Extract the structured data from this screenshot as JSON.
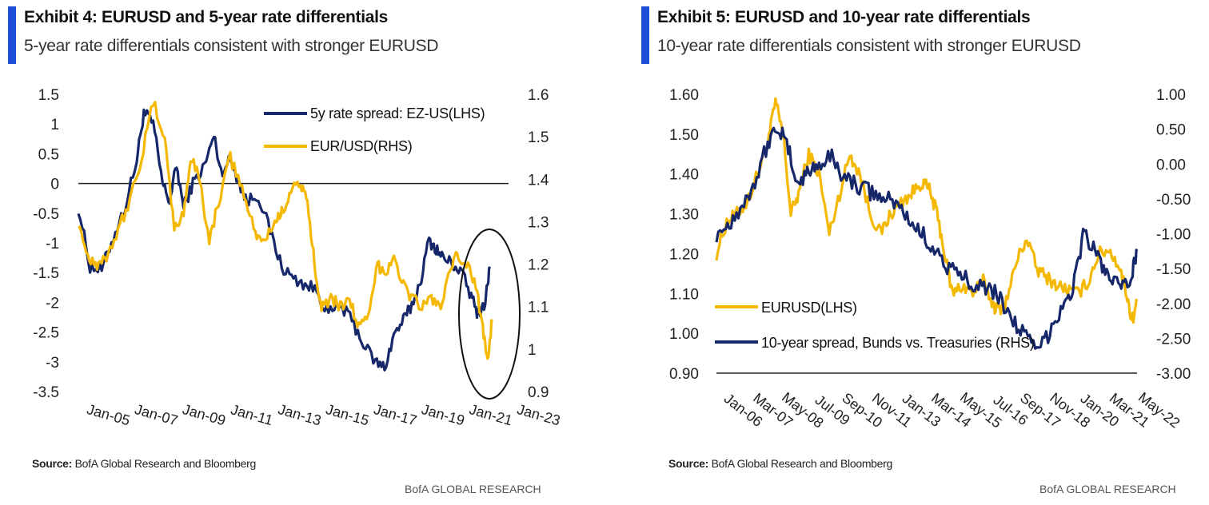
{
  "exhibit4": {
    "title": "Exhibit 4: EURUSD and 5-year rate differentials",
    "subtitle": "5-year rate differentials consistent with stronger EURUSD",
    "source_label": "Source:",
    "source_text": " BofA Global Research and Bloomberg",
    "brand": "BofA GLOBAL RESEARCH"
  },
  "exhibit5": {
    "title": "Exhibit 5: EURUSD and 10-year rate differentials",
    "subtitle": "10-year rate differentials consistent with stronger EURUSD",
    "source_label": "Source:",
    "source_text": " BofA Global Research and Bloomberg",
    "brand": "BofA GLOBAL RESEARCH"
  },
  "colors": {
    "navy": "#16286a",
    "gold": "#f5b800",
    "accent": "#1f4fd6"
  },
  "chart_data": [
    {
      "type": "line",
      "title": "Exhibit 4: EURUSD and 5-year rate differentials",
      "x_tick_labels": [
        "Jan-05",
        "Jan-07",
        "Jan-09",
        "Jan-11",
        "Jan-13",
        "Jan-15",
        "Jan-17",
        "Jan-19",
        "Jan-21",
        "Jan-23"
      ],
      "xlim": [
        2004.8,
        2023.2
      ],
      "y_left": {
        "ticks": [
          "1.5",
          "1",
          "0.5",
          "0",
          "-0.5",
          "-1",
          "-1.5",
          "-2",
          "-2.5",
          "-3",
          "-3.5"
        ],
        "lim": [
          -3.5,
          1.5
        ]
      },
      "y_right": {
        "ticks": [
          "1.6",
          "1.5",
          "1.4",
          "1.3",
          "1.2",
          "1.1",
          "1",
          "0.9"
        ],
        "lim": [
          0.9,
          1.6
        ]
      },
      "zero_line": 0,
      "annotation": "ellipse highlighting 2021-2022",
      "series": [
        {
          "name": "5y rate spread: EZ-US(LHS)",
          "axis": "left",
          "color": "navy",
          "x": [
            2004.8,
            2005.3,
            2005.8,
            2006.3,
            2006.8,
            2007.3,
            2007.6,
            2008.0,
            2008.4,
            2008.7,
            2009.0,
            2009.3,
            2009.7,
            2010.2,
            2010.6,
            2010.9,
            2011.3,
            2011.7,
            2012.0,
            2012.5,
            2013.0,
            2013.5,
            2014.0,
            2014.5,
            2015.0,
            2015.5,
            2016.0,
            2016.5,
            2017.0,
            2017.5,
            2017.9,
            2018.3,
            2018.7,
            2019.0,
            2019.4,
            2019.8,
            2020.1,
            2020.4,
            2020.8,
            2021.2,
            2021.6,
            2021.9,
            2022.2,
            2022.4
          ],
          "values": [
            -0.4,
            -1.4,
            -1.45,
            -0.9,
            -0.4,
            0.4,
            1.2,
            1.0,
            0.0,
            -0.3,
            0.3,
            -0.4,
            0.0,
            0.3,
            0.8,
            0.2,
            0.4,
            0.0,
            -0.3,
            -0.2,
            -0.8,
            -1.4,
            -1.6,
            -1.7,
            -1.8,
            -2.2,
            -2.05,
            -2.3,
            -2.7,
            -3.0,
            -3.1,
            -2.55,
            -2.3,
            -2.1,
            -1.7,
            -0.95,
            -1.1,
            -1.25,
            -1.35,
            -1.5,
            -1.9,
            -2.2,
            -2.0,
            -1.4
          ]
        },
        {
          "name": "EUR/USD(RHS)",
          "axis": "right",
          "color": "gold",
          "x": [
            2004.8,
            2005.2,
            2005.6,
            2006.0,
            2006.5,
            2007.0,
            2007.5,
            2008.0,
            2008.5,
            2008.9,
            2009.3,
            2009.6,
            2010.0,
            2010.4,
            2010.8,
            2011.3,
            2011.8,
            2012.3,
            2012.7,
            2013.2,
            2013.5,
            2013.9,
            2014.3,
            2014.6,
            2014.9,
            2015.2,
            2015.6,
            2016.0,
            2016.4,
            2016.8,
            2017.2,
            2017.6,
            2017.9,
            2018.3,
            2018.7,
            2019.1,
            2019.5,
            2019.9,
            2020.3,
            2020.7,
            2021.0,
            2021.4,
            2021.8,
            2022.1,
            2022.3,
            2022.5
          ],
          "values": [
            1.3,
            1.22,
            1.2,
            1.22,
            1.28,
            1.35,
            1.45,
            1.58,
            1.5,
            1.28,
            1.32,
            1.45,
            1.4,
            1.25,
            1.35,
            1.45,
            1.38,
            1.28,
            1.25,
            1.3,
            1.32,
            1.38,
            1.39,
            1.34,
            1.2,
            1.1,
            1.12,
            1.1,
            1.12,
            1.05,
            1.07,
            1.2,
            1.18,
            1.22,
            1.15,
            1.12,
            1.1,
            1.12,
            1.1,
            1.18,
            1.22,
            1.2,
            1.15,
            1.05,
            0.98,
            1.07
          ]
        }
      ]
    },
    {
      "type": "line",
      "title": "Exhibit 5: EURUSD and 10-year rate differentials",
      "x_tick_labels": [
        "Jan-06",
        "Mar-07",
        "May-08",
        "Jul-09",
        "Sep-10",
        "Nov-11",
        "Jan-13",
        "Mar-14",
        "May-15",
        "Jul-16",
        "Sep-17",
        "Nov-18",
        "Jan-20",
        "Mar-21",
        "May-22"
      ],
      "xlim": [
        2006.0,
        2022.4
      ],
      "y_left": {
        "ticks": [
          "1.60",
          "1.50",
          "1.40",
          "1.30",
          "1.20",
          "1.10",
          "1.00",
          "0.90"
        ],
        "lim": [
          0.9,
          1.6
        ]
      },
      "y_right": {
        "ticks": [
          "1.00",
          "0.50",
          "0.00",
          "-0.50",
          "-1.00",
          "-1.50",
          "-2.00",
          "-2.50",
          "-3.00"
        ],
        "lim": [
          -3.0,
          1.0
        ]
      },
      "series": [
        {
          "name": "EURUSD(LHS)",
          "axis": "left",
          "color": "gold",
          "x": [
            2006.0,
            2006.4,
            2006.8,
            2007.2,
            2007.6,
            2008.0,
            2008.3,
            2008.6,
            2008.9,
            2009.2,
            2009.6,
            2010.0,
            2010.4,
            2010.8,
            2011.2,
            2011.6,
            2012.0,
            2012.4,
            2012.8,
            2013.2,
            2013.6,
            2014.0,
            2014.3,
            2014.6,
            2014.9,
            2015.2,
            2015.6,
            2016.0,
            2016.4,
            2016.8,
            2017.0,
            2017.3,
            2017.7,
            2018.1,
            2018.5,
            2018.9,
            2019.3,
            2019.7,
            2020.1,
            2020.5,
            2020.9,
            2021.3,
            2021.7,
            2022.0,
            2022.2,
            2022.4
          ],
          "values": [
            1.2,
            1.28,
            1.3,
            1.33,
            1.4,
            1.48,
            1.58,
            1.5,
            1.3,
            1.35,
            1.45,
            1.4,
            1.25,
            1.35,
            1.45,
            1.4,
            1.3,
            1.25,
            1.3,
            1.33,
            1.35,
            1.38,
            1.36,
            1.3,
            1.2,
            1.1,
            1.12,
            1.1,
            1.13,
            1.07,
            1.06,
            1.08,
            1.18,
            1.24,
            1.16,
            1.14,
            1.12,
            1.11,
            1.1,
            1.13,
            1.2,
            1.21,
            1.17,
            1.1,
            1.03,
            1.08
          ]
        },
        {
          "name": "10-year spread, Bunds vs. Treasuries (RHS)",
          "axis": "right",
          "color": "navy",
          "x": [
            2006.0,
            2006.5,
            2007.0,
            2007.5,
            2008.0,
            2008.4,
            2008.8,
            2009.2,
            2009.6,
            2010.0,
            2010.5,
            2011.0,
            2011.5,
            2012.0,
            2012.5,
            2013.0,
            2013.5,
            2014.0,
            2014.5,
            2015.0,
            2015.5,
            2016.0,
            2016.5,
            2017.0,
            2017.5,
            2018.0,
            2018.5,
            2019.0,
            2019.5,
            2019.9,
            2020.3,
            2020.7,
            2021.1,
            2021.5,
            2021.9,
            2022.2,
            2022.4
          ],
          "values": [
            -1.0,
            -0.85,
            -0.6,
            -0.25,
            0.3,
            0.55,
            0.2,
            -0.3,
            -0.1,
            0.0,
            0.1,
            -0.2,
            -0.3,
            -0.4,
            -0.5,
            -0.55,
            -0.8,
            -1.0,
            -1.2,
            -1.5,
            -1.6,
            -1.7,
            -1.75,
            -1.9,
            -2.2,
            -2.45,
            -2.7,
            -2.4,
            -2.0,
            -1.8,
            -1.0,
            -1.2,
            -1.5,
            -1.7,
            -1.8,
            -1.6,
            -1.25
          ]
        }
      ],
      "x_axis_at": 0.9
    }
  ]
}
